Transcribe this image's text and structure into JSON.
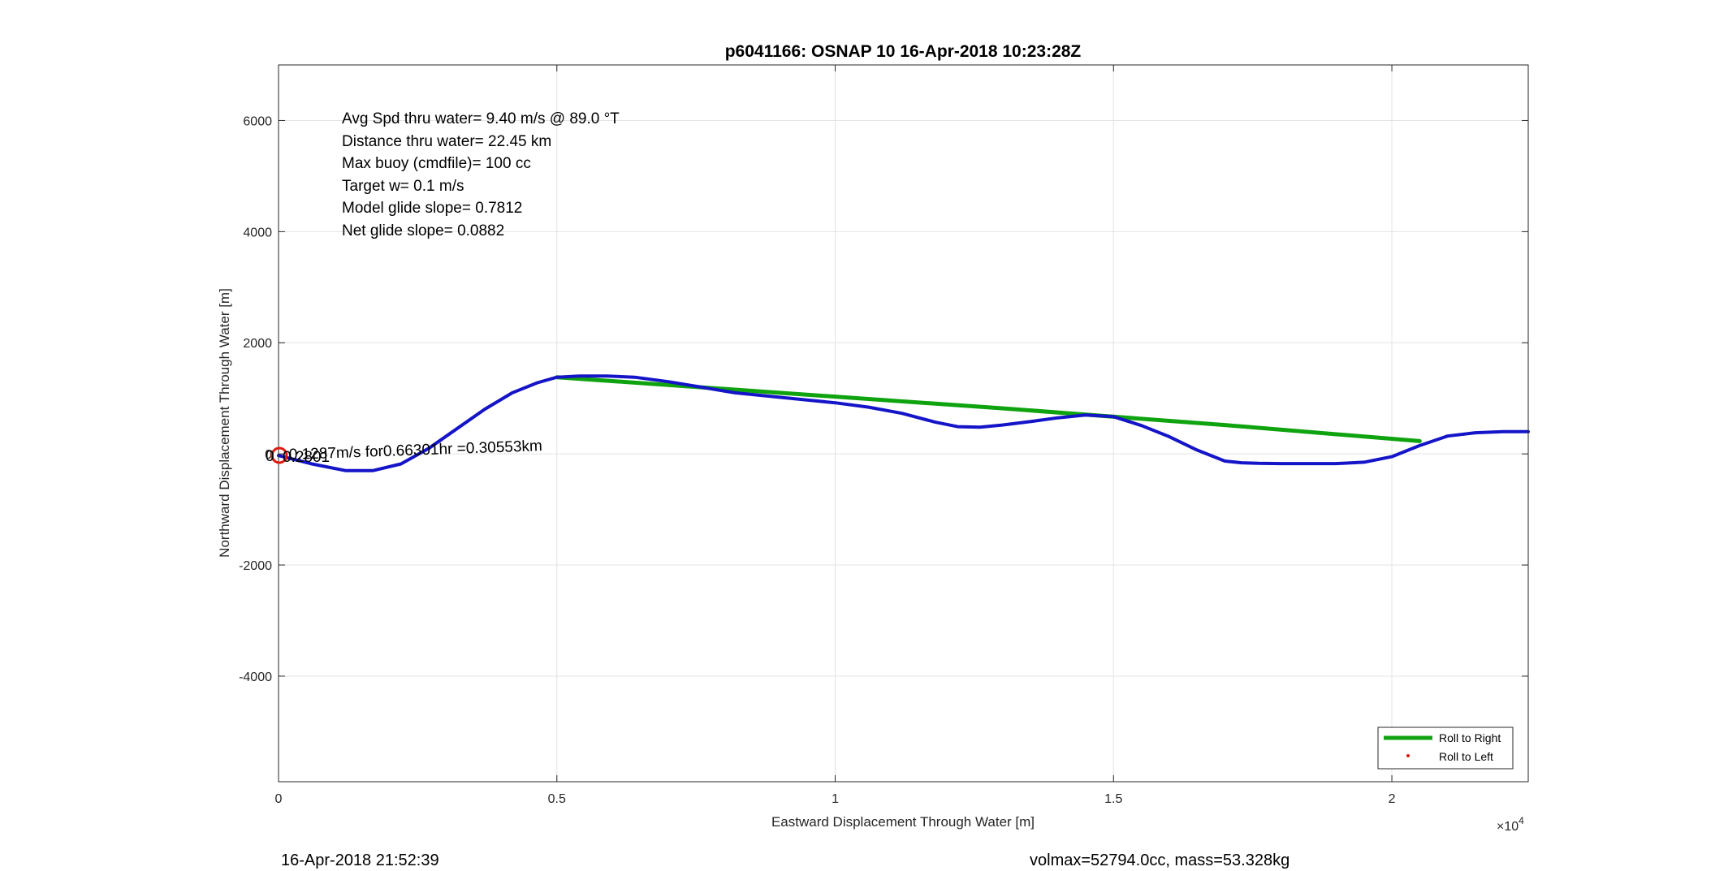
{
  "chart_data": {
    "type": "line",
    "title": "p6041166: OSNAP 10 16-Apr-2018 10:23:28Z",
    "xlabel": "Eastward Displacement Through Water [m]",
    "ylabel": "Northward Displacement Through Water [m]",
    "xlim": [
      0,
      22450
    ],
    "ylim": [
      -5900,
      7000
    ],
    "x_ticks": [
      0,
      5000,
      10000,
      15000,
      20000
    ],
    "x_tick_labels": [
      "0",
      "0.5",
      "1",
      "1.5",
      "2"
    ],
    "x_exponent_label": "×10",
    "x_exponent_power": "4",
    "y_ticks": [
      6000,
      4000,
      2000,
      0,
      -2000,
      -4000
    ],
    "y_tick_labels": [
      "6000",
      "4000",
      "2000",
      "0",
      "-2000",
      "-4000"
    ],
    "grid": true,
    "legend_position": "bottom-right",
    "series": [
      {
        "name": "Roll to Right",
        "color": "#0fa30f",
        "x": [
          5000,
          9000,
          13000,
          17000,
          20500
        ],
        "y": [
          1380,
          1100,
          820,
          520,
          230
        ]
      },
      {
        "name": "Roll to Left",
        "color": "#e0190f",
        "x": [],
        "y": []
      },
      {
        "name": "",
        "color": "#1414c8",
        "x": [
          0,
          600,
          1200,
          1700,
          2200,
          2700,
          3200,
          3700,
          4200,
          4650,
          5000,
          5400,
          5900,
          6400,
          7000,
          7600,
          8200,
          8800,
          9400,
          10000,
          10600,
          11200,
          11800,
          12200,
          12600,
          13000,
          13500,
          14000,
          14500,
          15000,
          15500,
          16000,
          16500,
          17000,
          17300,
          17600,
          18000,
          18500,
          19000,
          19500,
          20000,
          20500,
          21000,
          21500,
          22000,
          22450
        ],
        "y": [
          -30,
          -180,
          -300,
          -300,
          -180,
          100,
          450,
          800,
          1100,
          1280,
          1380,
          1400,
          1400,
          1380,
          1300,
          1200,
          1100,
          1040,
          980,
          920,
          840,
          730,
          570,
          490,
          480,
          520,
          580,
          650,
          700,
          670,
          510,
          310,
          70,
          -130,
          -160,
          -170,
          -175,
          -175,
          -175,
          -150,
          -50,
          150,
          320,
          380,
          400,
          400
        ]
      }
    ],
    "annotations": [
      "Avg Spd thru water=  9.40 m/s @  89.0 °T",
      "Distance thru water= 22.45 km",
      "Max buoy (cmdfile)= 100 cc",
      "Target w= 0.1 m/s",
      "Model glide slope= 0.7812",
      "Net glide slope= 0.0882"
    ],
    "current_label": "0.1287m/s for0.66301hr =0.30553km",
    "marker_label_a": "0.2801",
    "marker_label_b": "0"
  },
  "footer": {
    "left": "16-Apr-2018 21:52:39",
    "right": "volmax=52794.0cc, mass=53.328kg"
  }
}
